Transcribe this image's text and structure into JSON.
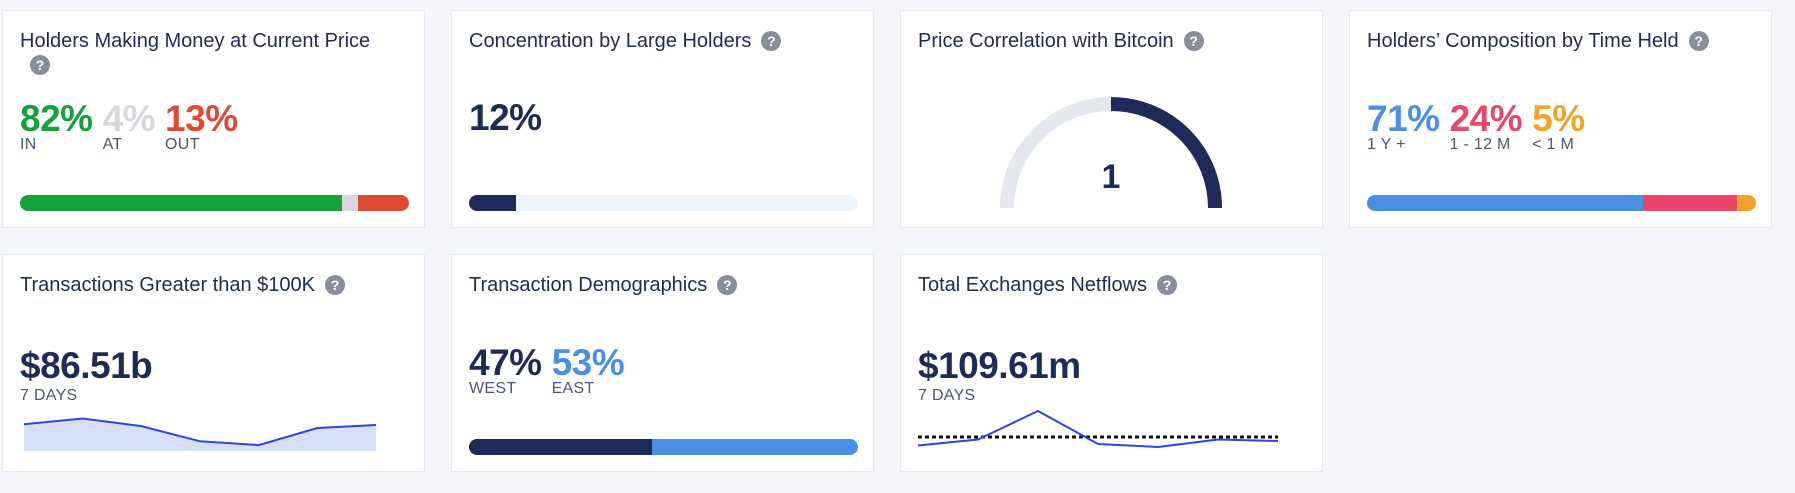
{
  "colors": {
    "green": "#15a23a",
    "gray_light": "#d6d8de",
    "red": "#dc4b33",
    "navy": "#1e2b58",
    "blue": "#4a90e2",
    "pink": "#e8466b",
    "orange": "#f5a22c"
  },
  "cards": {
    "holders_money": {
      "title": "Holders Making Money at Current Price",
      "in_value": "82%",
      "in_label": "IN",
      "at_value": "4%",
      "at_label": "AT",
      "out_value": "13%",
      "out_label": "OUT",
      "in_fraction": 0.82,
      "at_fraction": 0.04,
      "out_fraction": 0.13
    },
    "concentration": {
      "title": "Concentration by Large Holders",
      "value": "12%",
      "fraction": 0.12
    },
    "price_correlation": {
      "title": "Price Correlation with Bitcoin",
      "value": "1",
      "gauge_fraction": 1
    },
    "composition": {
      "title": "Holders’ Composition by Time Held",
      "long_value": "71%",
      "long_label": "1 Y +",
      "mid_value": "24%",
      "mid_label": "1 - 12 M",
      "short_value": "5%",
      "short_label": "< 1 M",
      "long_fraction": 0.71,
      "mid_fraction": 0.24,
      "short_fraction": 0.05
    },
    "large_transactions": {
      "title": "Transactions Greater than $100K",
      "value": "$86.51b",
      "period": "7 DAYS",
      "trend": [
        0.6,
        0.75,
        0.55,
        0.15,
        0.05,
        0.5,
        0.58
      ]
    },
    "demographics": {
      "title": "Transaction Demographics",
      "west_value": "47%",
      "west_label": "WEST",
      "east_value": "53%",
      "east_label": "EAST",
      "west_fraction": 0.47,
      "east_fraction": 0.53
    },
    "netflows": {
      "title": "Total Exchanges Netflows",
      "value": "$109.61m",
      "period": "7 DAYS",
      "trend": [
        -0.15,
        0.05,
        1.0,
        -0.1,
        -0.2,
        0.05,
        0.0
      ],
      "baseline": 0
    }
  }
}
